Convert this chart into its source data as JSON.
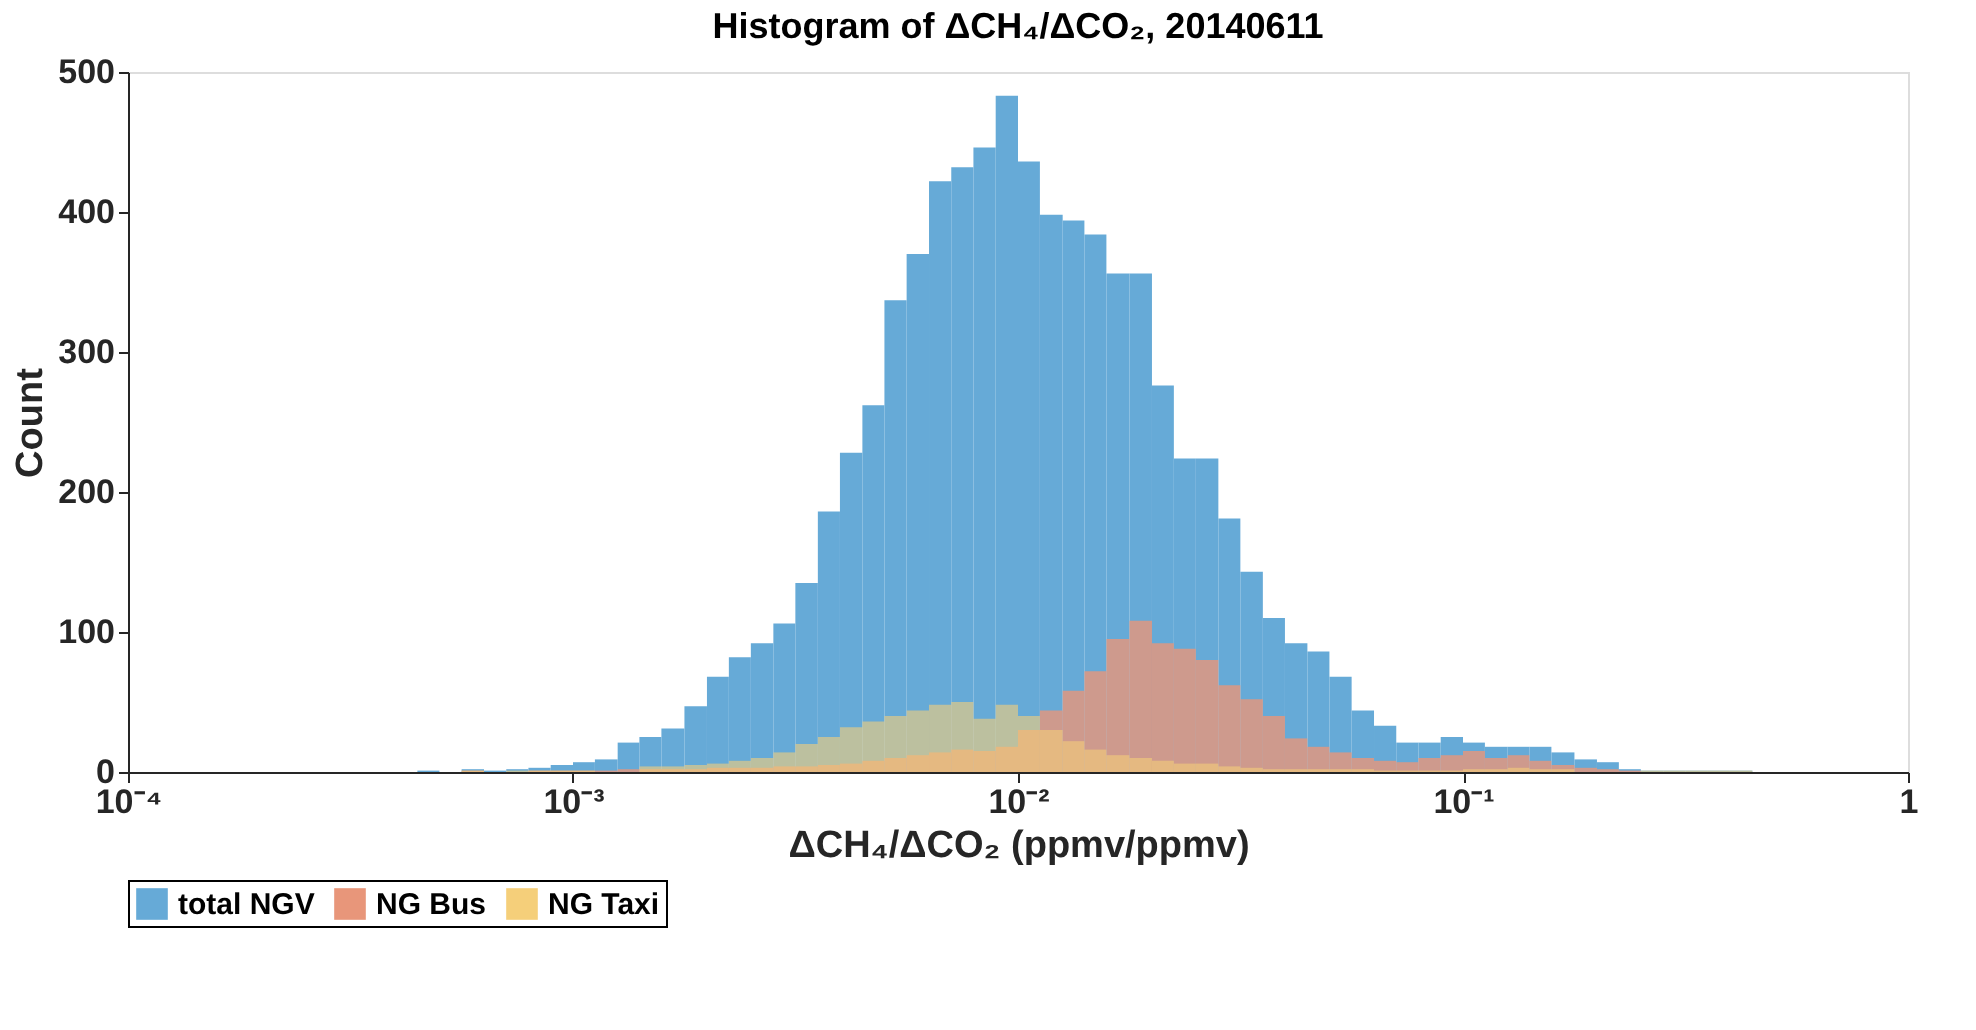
{
  "chart_data": {
    "type": "histogram",
    "title": "Histogram of ΔCH₄/ΔCO₂, 20140611",
    "xlabel": "ΔCH₄/ΔCO₂ (ppmv/ppmv)",
    "ylabel": "Count",
    "bins": [
      0.000447,
      0.000501,
      0.000562,
      0.000631,
      0.000708,
      0.000794,
      0.000891,
      0.001,
      0.00112,
      0.00126,
      0.00141,
      0.00158,
      0.00178,
      0.002,
      0.00224,
      0.00251,
      0.00282,
      0.00316,
      0.00355,
      0.00398,
      0.00447,
      0.00501,
      0.00562,
      0.00631,
      0.00708,
      0.00794,
      0.00891,
      0.01,
      0.0112,
      0.0126,
      0.0141,
      0.0158,
      0.0178,
      0.02,
      0.0224,
      0.0251,
      0.0282,
      0.0316,
      0.0355,
      0.0398,
      0.0447,
      0.0501,
      0.0562,
      0.0631,
      0.0708,
      0.0794,
      0.0891,
      0.1,
      0.112,
      0.126,
      0.141,
      0.158,
      0.178,
      0.2,
      0.224,
      0.251,
      0.282,
      0.316,
      0.355,
      0.398,
      0.447
    ],
    "series": [
      {
        "name": "total NGV",
        "color": "#66aad7",
        "values": [
          1,
          0,
          2,
          1,
          2,
          3,
          5,
          7,
          9,
          21,
          25,
          31,
          47,
          68,
          82,
          92,
          106,
          135,
          186,
          228,
          262,
          337,
          370,
          422,
          432,
          446,
          483,
          436,
          398,
          394,
          384,
          356,
          356,
          276,
          224,
          224,
          181,
          143,
          110,
          92,
          86,
          68,
          44,
          33,
          21,
          21,
          25,
          21,
          18,
          18,
          18,
          14,
          9,
          7,
          2,
          1,
          1,
          1,
          1,
          1
        ]
      },
      {
        "name": "NG Bus",
        "color": "#e8967a",
        "values": [
          0,
          0,
          1,
          0,
          0,
          1,
          1,
          1,
          1,
          2,
          2,
          2,
          2,
          3,
          3,
          3,
          4,
          4,
          5,
          6,
          8,
          10,
          12,
          14,
          16,
          15,
          18,
          30,
          44,
          58,
          72,
          95,
          108,
          92,
          88,
          80,
          62,
          52,
          40,
          24,
          18,
          14,
          10,
          8,
          7,
          10,
          12,
          15,
          10,
          12,
          8,
          5,
          3,
          2,
          1,
          0,
          0,
          0,
          0,
          0
        ]
      },
      {
        "name": "NG Taxi",
        "color": "#f5cf7a",
        "values": [
          0,
          0,
          1,
          0,
          1,
          1,
          1,
          1,
          0,
          0,
          4,
          4,
          5,
          6,
          8,
          10,
          14,
          20,
          25,
          32,
          36,
          40,
          44,
          48,
          50,
          38,
          48,
          40,
          30,
          22,
          16,
          12,
          10,
          8,
          6,
          6,
          4,
          3,
          2,
          2,
          2,
          2,
          2,
          1,
          1,
          1,
          1,
          2,
          2,
          3,
          2,
          2,
          0,
          0,
          0,
          1,
          1,
          1,
          1,
          1
        ]
      }
    ],
    "xlim": [
      0.0001,
      1
    ],
    "ylim": [
      0,
      500
    ],
    "xticks": [
      {
        "value": 0.0001,
        "label": "10⁻⁴"
      },
      {
        "value": 0.001,
        "label": "10⁻³"
      },
      {
        "value": 0.01,
        "label": "10⁻²"
      },
      {
        "value": 0.1,
        "label": "10⁻¹"
      },
      1
    ],
    "yticks": [
      0,
      100,
      200,
      300,
      400,
      500
    ],
    "log": "x",
    "grid": false,
    "legend": "bottom"
  }
}
